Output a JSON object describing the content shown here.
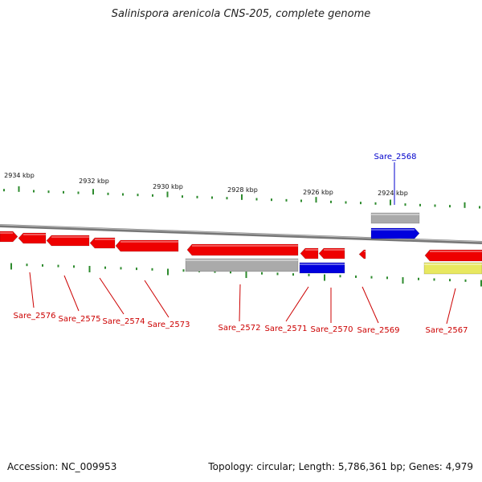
{
  "title": "Salinispora arenicola CNS-205, complete genome",
  "accession_text": "Accession: NC_009953",
  "summary_text": "Topology: circular; Length: 5,786,361 bp; Genes: 4,979",
  "colors": {
    "forward_gene": "#0000dd",
    "reverse_gene": "#ee0000",
    "pseudo_gene": "#aaaaaa",
    "rna_gene": "#e8e860",
    "tick": "#2e8b2e",
    "backbone": "#777777",
    "label_reverse": "#cc0000",
    "label_forward": "#0000cc"
  },
  "scale": {
    "unit": "kbp",
    "labels": [
      "2934 kbp",
      "2932 kbp",
      "2930 kbp",
      "2928 kbp",
      "2926 kbp",
      "2924 kbp"
    ]
  },
  "genes": [
    {
      "label": "Sare_2576",
      "strand": "reverse"
    },
    {
      "label": "Sare_2575",
      "strand": "reverse"
    },
    {
      "label": "Sare_2574",
      "strand": "reverse"
    },
    {
      "label": "Sare_2573",
      "strand": "reverse"
    },
    {
      "label": "Sare_2572",
      "strand": "reverse"
    },
    {
      "label": "Sare_2571",
      "strand": "reverse"
    },
    {
      "label": "Sare_2570",
      "strand": "reverse"
    },
    {
      "label": "Sare_2569",
      "strand": "reverse"
    },
    {
      "label": "Sare_2568",
      "strand": "forward"
    },
    {
      "label": "Sare_2567",
      "strand": "reverse"
    }
  ]
}
